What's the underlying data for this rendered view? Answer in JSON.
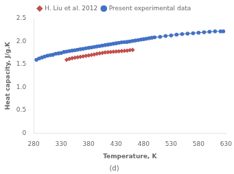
{
  "chart_data": {
    "type": "line",
    "subtitle": "(d)",
    "x_label": "Temperature, K",
    "y_label": "Heat capacity, J/g.K",
    "xlim": [
      280,
      630
    ],
    "ylim": [
      0,
      2.5
    ],
    "xticks": [
      280,
      330,
      380,
      430,
      480,
      530,
      580,
      630
    ],
    "yticks": [
      0,
      0.5,
      {
        "value": 1.0,
        "label": "1.0"
      },
      1.5,
      {
        "value": 2.0,
        "label": "2.0"
      },
      2.5
    ],
    "grid": false,
    "legend": "top",
    "series": [
      {
        "name": "Present experimental data",
        "type": "line",
        "marker": "circle",
        "color": "#4472C4",
        "x": [
          285,
          290,
          295,
          300,
          305,
          310,
          315,
          320,
          325,
          330,
          335,
          340,
          345,
          350,
          355,
          360,
          365,
          370,
          375,
          380,
          385,
          390,
          395,
          400,
          405,
          410,
          415,
          420,
          425,
          430,
          435,
          440,
          445,
          450,
          455,
          460,
          465,
          470,
          475,
          480,
          485,
          490,
          495,
          500,
          510,
          520,
          530,
          540,
          550,
          560,
          570,
          580,
          590,
          600,
          610,
          620,
          625
        ],
        "values": [
          1.6,
          1.63,
          1.65,
          1.67,
          1.69,
          1.7,
          1.71,
          1.73,
          1.74,
          1.75,
          1.77,
          1.78,
          1.79,
          1.8,
          1.81,
          1.82,
          1.83,
          1.84,
          1.85,
          1.86,
          1.87,
          1.88,
          1.89,
          1.9,
          1.91,
          1.92,
          1.93,
          1.94,
          1.95,
          1.96,
          1.97,
          1.98,
          1.985,
          1.99,
          2.0,
          2.01,
          2.02,
          2.03,
          2.04,
          2.05,
          2.06,
          2.07,
          2.08,
          2.09,
          2.1,
          2.12,
          2.13,
          2.15,
          2.16,
          2.17,
          2.18,
          2.19,
          2.2,
          2.21,
          2.22,
          2.22,
          2.22
        ]
      },
      {
        "name": "H. Liu et al. 2012",
        "type": "scatter",
        "marker": "diamond",
        "color": "#C0504D",
        "x": [
          340,
          345,
          350,
          355,
          360,
          365,
          370,
          375,
          380,
          385,
          390,
          395,
          400,
          405,
          410,
          415,
          420,
          425,
          430,
          435,
          440,
          445,
          450,
          455,
          460
        ],
        "values": [
          1.6,
          1.62,
          1.635,
          1.645,
          1.655,
          1.665,
          1.675,
          1.685,
          1.695,
          1.705,
          1.715,
          1.73,
          1.74,
          1.75,
          1.76,
          1.765,
          1.77,
          1.775,
          1.78,
          1.785,
          1.79,
          1.795,
          1.8,
          1.81,
          1.815
        ]
      }
    ]
  }
}
